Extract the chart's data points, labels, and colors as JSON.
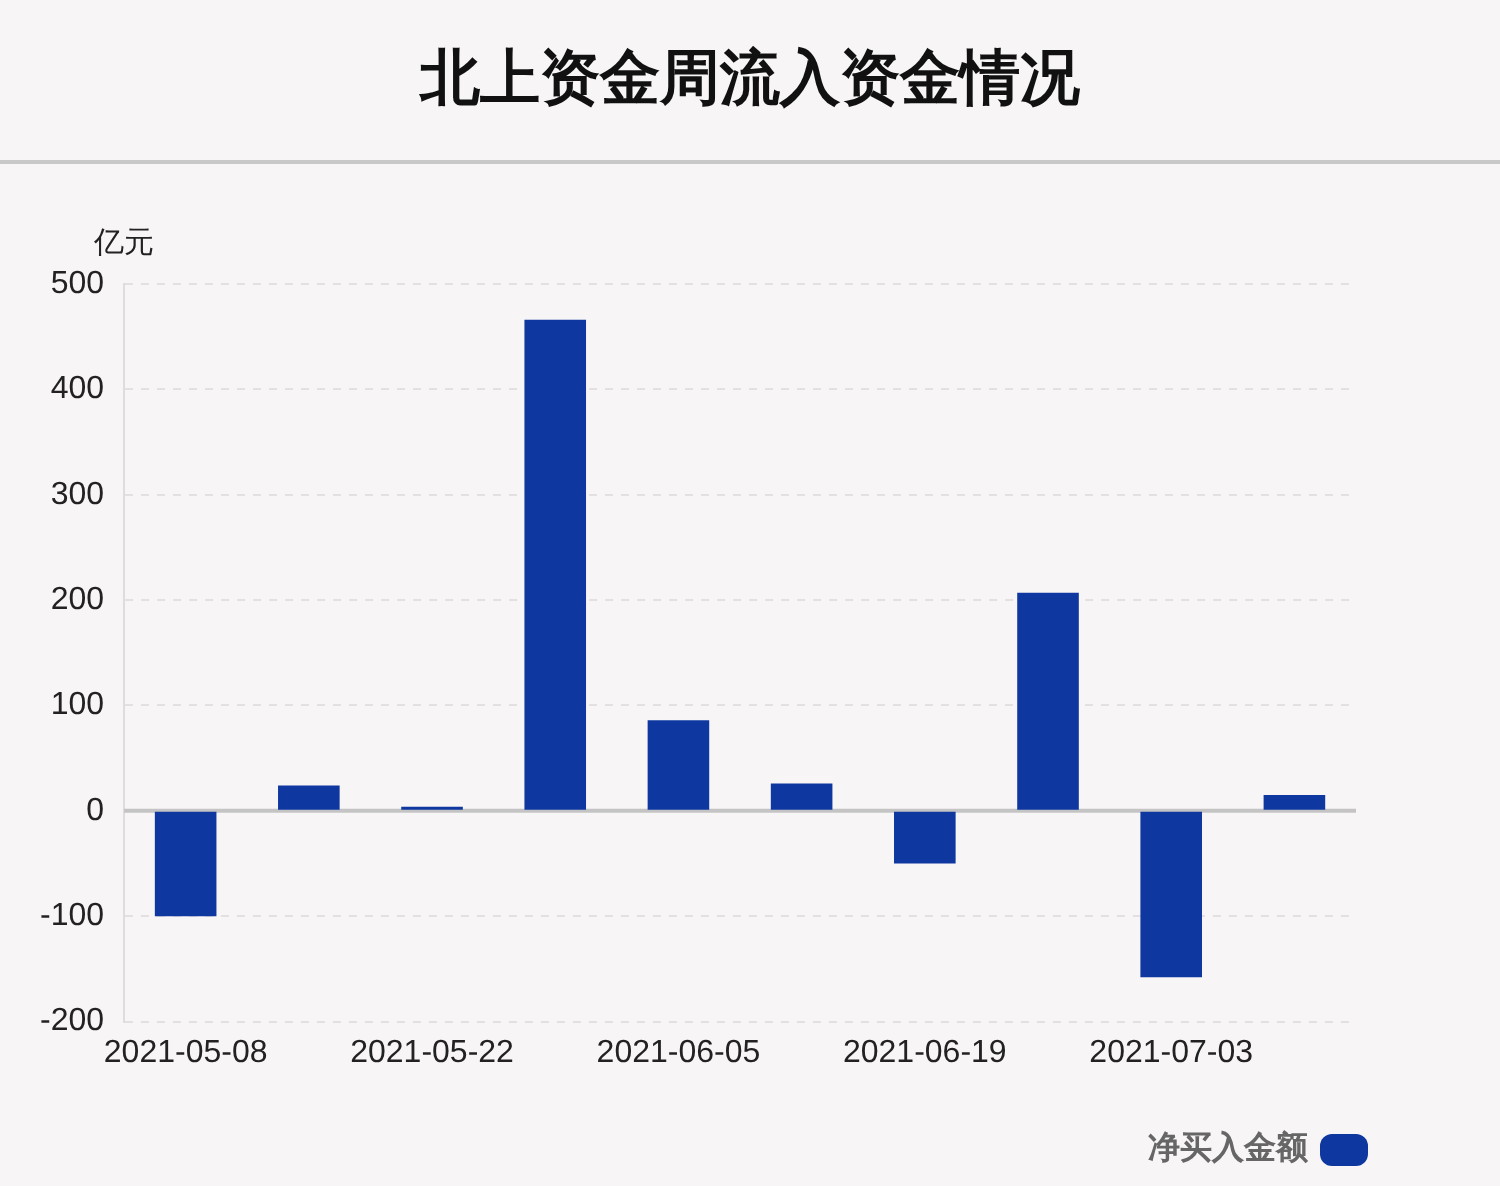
{
  "chart_data": {
    "type": "bar",
    "title": "北上资金周流入资金情况",
    "ylabel": "亿元",
    "categories": [
      "2021-05-08",
      null,
      "2021-05-22",
      null,
      "2021-06-05",
      null,
      "2021-06-19",
      null,
      "2021-07-03",
      null
    ],
    "series": [
      {
        "name": "净买入金额",
        "color": "#0e37a0",
        "values": [
          -100,
          24,
          4,
          466,
          86,
          26,
          -50,
          207,
          -158,
          15
        ]
      }
    ],
    "ylim": [
      -200,
      500
    ],
    "yticks": [
      -200,
      -100,
      0,
      100,
      200,
      300,
      400,
      500
    ],
    "grid": "y",
    "ref_lines": [
      {
        "axis": "y",
        "value": 0,
        "color": "#c4c4c4"
      }
    ],
    "legend": "bottom right"
  }
}
